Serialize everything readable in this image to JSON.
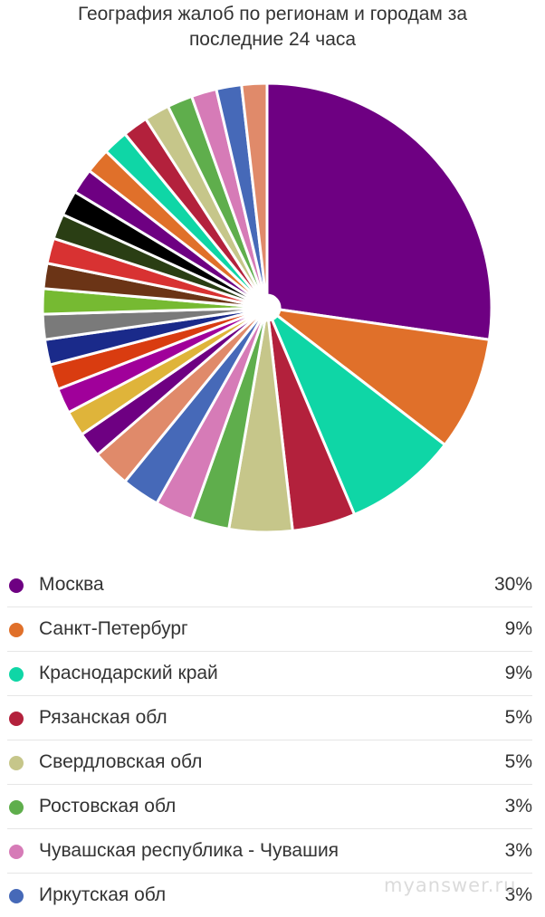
{
  "title": {
    "line1": "География жалоб по регионам и городам за",
    "line2": "последние 24 часа"
  },
  "chart_data": {
    "type": "pie",
    "title": "География жалоб по регионам и городам за последние 24 часа",
    "unit": "%",
    "slices": [
      {
        "name": "Москва",
        "value": 30,
        "color": "#6e0082"
      },
      {
        "name": "Санкт-Петербург",
        "value": 9,
        "color": "#e0702a"
      },
      {
        "name": "Краснодарский край",
        "value": 9,
        "color": "#0fd6a6"
      },
      {
        "name": "Рязанская обл",
        "value": 5,
        "color": "#b3213c"
      },
      {
        "name": "Свердловская обл",
        "value": 5,
        "color": "#c6c68a"
      },
      {
        "name": "Ростовская обл",
        "value": 3,
        "color": "#5fae4c"
      },
      {
        "name": "Чувашская республика - Чувашия",
        "value": 3,
        "color": "#d67bb7"
      },
      {
        "name": "Иркутская обл",
        "value": 3,
        "color": "#4669b8"
      },
      {
        "value": 3,
        "color": "#e08a6a"
      },
      {
        "value": 2,
        "color": "#6e0082"
      },
      {
        "value": 2,
        "color": "#dfb43a"
      },
      {
        "value": 2,
        "color": "#a0009a"
      },
      {
        "value": 2,
        "color": "#d93c10"
      },
      {
        "value": 2,
        "color": "#1a2a8a"
      },
      {
        "value": 2,
        "color": "#7a7a7a"
      },
      {
        "value": 2,
        "color": "#76ba32"
      },
      {
        "value": 2,
        "color": "#6b3416"
      },
      {
        "value": 2,
        "color": "#d83232"
      },
      {
        "value": 2,
        "color": "#2a3e14"
      },
      {
        "value": 2,
        "color": "#000000"
      },
      {
        "value": 2,
        "color": "#6e0082"
      },
      {
        "value": 2,
        "color": "#e0702a"
      },
      {
        "value": 2,
        "color": "#0fd6a6"
      },
      {
        "value": 2,
        "color": "#b3213c"
      },
      {
        "value": 2,
        "color": "#c6c68a"
      },
      {
        "value": 2,
        "color": "#5fae4c"
      },
      {
        "value": 2,
        "color": "#d67bb7"
      },
      {
        "value": 2,
        "color": "#4669b8"
      },
      {
        "value": 2,
        "color": "#e08a6a"
      }
    ]
  },
  "legend": [
    {
      "label": "Москва",
      "value": "30%",
      "color": "#6e0082"
    },
    {
      "label": "Санкт-Петербург",
      "value": "9%",
      "color": "#e0702a"
    },
    {
      "label": "Краснодарский край",
      "value": "9%",
      "color": "#0fd6a6"
    },
    {
      "label": "Рязанская обл",
      "value": "5%",
      "color": "#b3213c"
    },
    {
      "label": "Свердловская обл",
      "value": "5%",
      "color": "#c6c68a"
    },
    {
      "label": "Ростовская обл",
      "value": "3%",
      "color": "#5fae4c"
    },
    {
      "label": "Чувашская республика - Чувашия",
      "value": "3%",
      "color": "#d67bb7"
    },
    {
      "label": "Иркутская обл",
      "value": "3%",
      "color": "#4669b8"
    }
  ],
  "watermark": "myanswer.ru"
}
